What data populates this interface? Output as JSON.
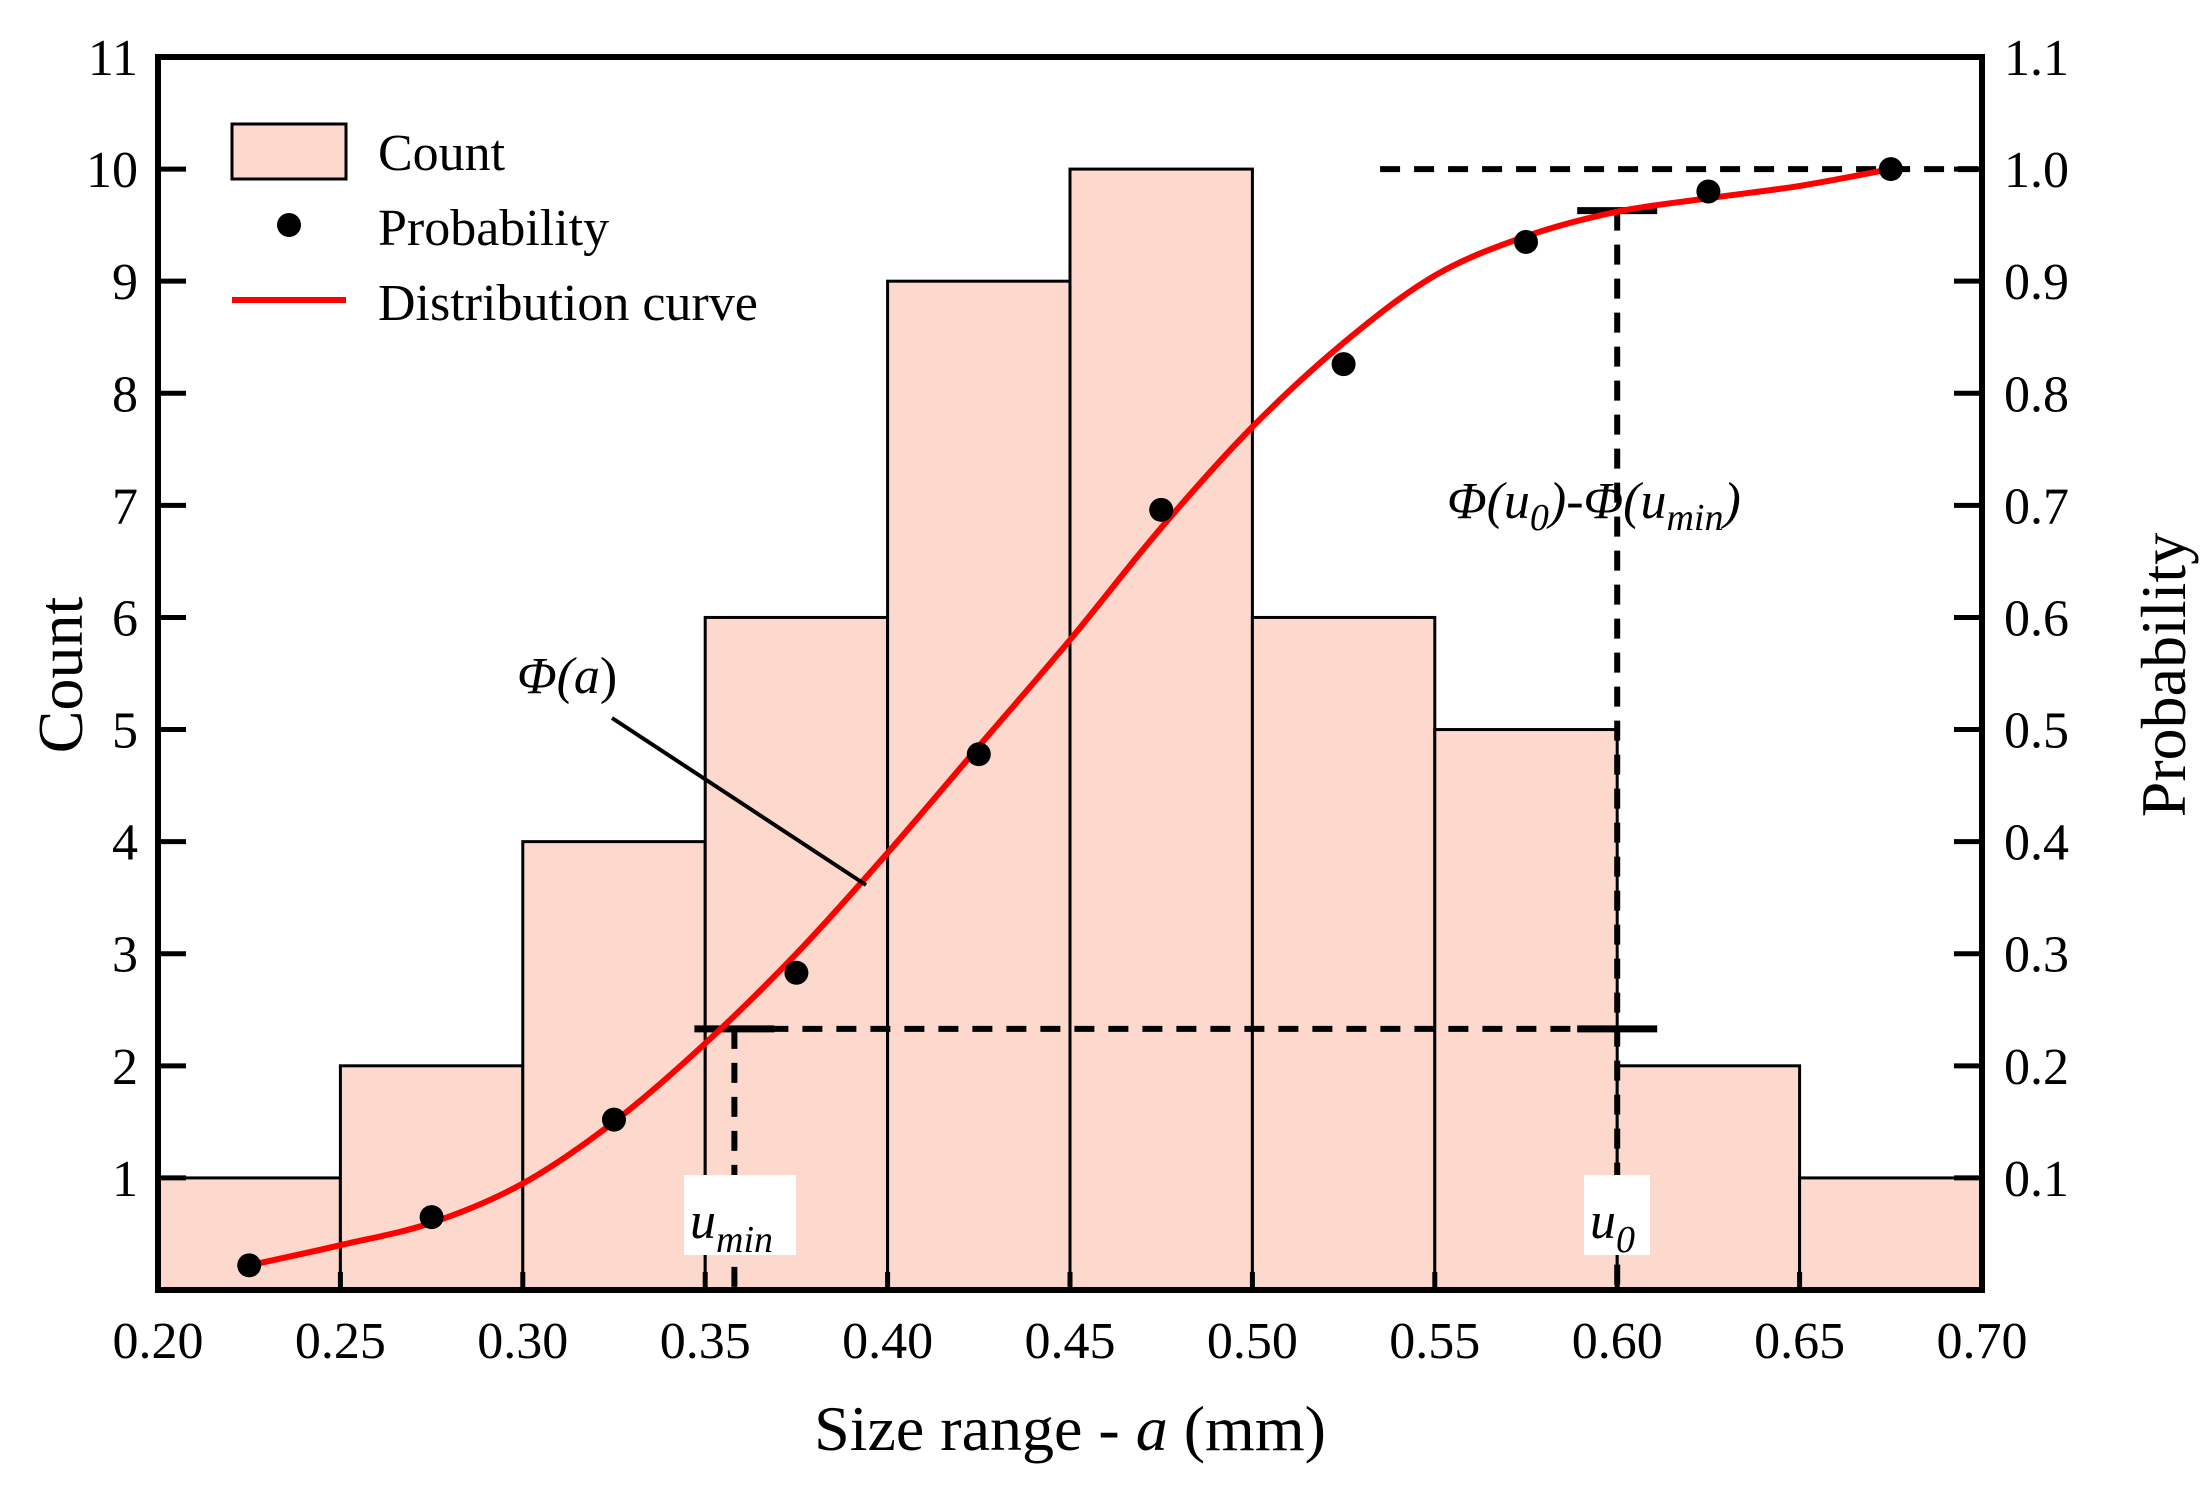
{
  "chart_data": {
    "type": "histogram",
    "xlabel_prefix": "Size range - ",
    "xlabel_var": "a",
    "xlabel_suffix": " (mm)",
    "ylabel": "Count",
    "y2label": "Probability",
    "xlim": [
      0.2,
      0.7
    ],
    "ylim": [
      0,
      11
    ],
    "y2lim": [
      0,
      1.1
    ],
    "x_ticks": [
      "0.20",
      "0.25",
      "0.30",
      "0.35",
      "0.40",
      "0.45",
      "0.50",
      "0.55",
      "0.60",
      "0.65",
      "0.70"
    ],
    "y_ticks": [
      "1",
      "2",
      "3",
      "4",
      "5",
      "6",
      "7",
      "8",
      "9",
      "10",
      "11"
    ],
    "y2_ticks": [
      "0.1",
      "0.2",
      "0.3",
      "0.4",
      "0.5",
      "0.6",
      "0.7",
      "0.8",
      "0.9",
      "1.0",
      "1.1"
    ],
    "bins": [
      {
        "start": 0.2,
        "end": 0.25,
        "count": 1
      },
      {
        "start": 0.25,
        "end": 0.3,
        "count": 2
      },
      {
        "start": 0.3,
        "end": 0.35,
        "count": 4
      },
      {
        "start": 0.35,
        "end": 0.4,
        "count": 6
      },
      {
        "start": 0.4,
        "end": 0.45,
        "count": 9
      },
      {
        "start": 0.45,
        "end": 0.5,
        "count": 10
      },
      {
        "start": 0.5,
        "end": 0.55,
        "count": 6
      },
      {
        "start": 0.55,
        "end": 0.6,
        "count": 5
      },
      {
        "start": 0.6,
        "end": 0.65,
        "count": 2
      },
      {
        "start": 0.65,
        "end": 0.7,
        "count": 1
      }
    ],
    "probability_points": [
      {
        "x": 0.225,
        "y": 0.022
      },
      {
        "x": 0.275,
        "y": 0.065
      },
      {
        "x": 0.325,
        "y": 0.152
      },
      {
        "x": 0.375,
        "y": 0.283
      },
      {
        "x": 0.425,
        "y": 0.478
      },
      {
        "x": 0.475,
        "y": 0.696
      },
      {
        "x": 0.525,
        "y": 0.826
      },
      {
        "x": 0.575,
        "y": 0.935
      },
      {
        "x": 0.625,
        "y": 0.98
      },
      {
        "x": 0.675,
        "y": 1.0
      }
    ],
    "distribution_curve": [
      {
        "x": 0.225,
        "y": 0.022
      },
      {
        "x": 0.25,
        "y": 0.04
      },
      {
        "x": 0.275,
        "y": 0.06
      },
      {
        "x": 0.3,
        "y": 0.095
      },
      {
        "x": 0.325,
        "y": 0.15
      },
      {
        "x": 0.35,
        "y": 0.22
      },
      {
        "x": 0.375,
        "y": 0.3
      },
      {
        "x": 0.4,
        "y": 0.39
      },
      {
        "x": 0.425,
        "y": 0.485
      },
      {
        "x": 0.45,
        "y": 0.58
      },
      {
        "x": 0.475,
        "y": 0.68
      },
      {
        "x": 0.5,
        "y": 0.77
      },
      {
        "x": 0.525,
        "y": 0.845
      },
      {
        "x": 0.55,
        "y": 0.905
      },
      {
        "x": 0.575,
        "y": 0.94
      },
      {
        "x": 0.6,
        "y": 0.962
      },
      {
        "x": 0.625,
        "y": 0.974
      },
      {
        "x": 0.65,
        "y": 0.985
      },
      {
        "x": 0.675,
        "y": 1.0
      }
    ],
    "legend": {
      "position": "top-left",
      "count_label": "Count",
      "probability_label": "Probability",
      "curve_label": "Distribution curve"
    },
    "colors": {
      "bar_fill": "#fcd9cc",
      "bar_edge": "#000000",
      "curve": "#ff0000",
      "points": "#000000"
    },
    "annotations": {
      "phi_a": {
        "base": "Φ(",
        "var": "a",
        "close": ")"
      },
      "phi_diff": {
        "text1": "Φ(",
        "var1": "u",
        "sub1": "0",
        "text2": ")-Φ(",
        "var2": "u",
        "sub2": "min",
        "text3": ")"
      },
      "u_min": {
        "var": "u",
        "sub": "min",
        "x": 0.358,
        "y": 0.233
      },
      "u_0": {
        "var": "u",
        "sub": "0",
        "x": 0.6,
        "y": 0.963
      }
    }
  }
}
